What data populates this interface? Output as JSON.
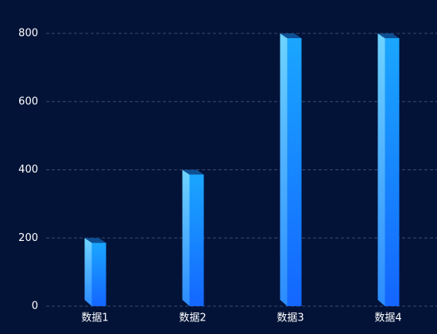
{
  "chart_data": {
    "type": "bar3d",
    "categories": [
      "数据1",
      "数据2",
      "数据3",
      "数据4"
    ],
    "values": [
      200,
      400,
      800,
      800
    ],
    "ylim": [
      0,
      800
    ],
    "yticks": [
      0,
      200,
      400,
      600,
      800
    ],
    "grid": true,
    "color": "#1a8cff"
  }
}
